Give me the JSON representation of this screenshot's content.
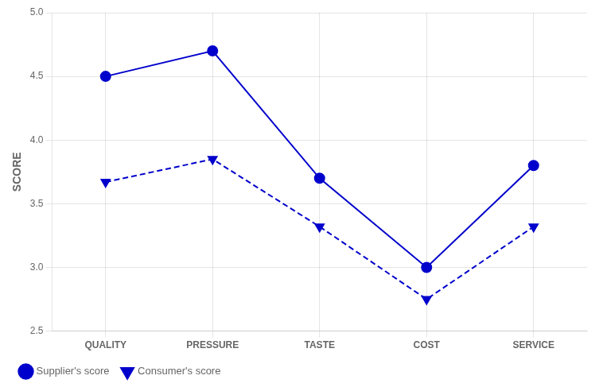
{
  "chart_data": {
    "type": "line",
    "categories": [
      "QUALITY",
      "PRESSURE",
      "TASTE",
      "COST",
      "SERVICE"
    ],
    "series": [
      {
        "name": "Supplier's score",
        "color": "#0000cc",
        "values": [
          4.5,
          4.7,
          3.7,
          3.0,
          3.8
        ],
        "marker": "circle",
        "line_style": "solid"
      },
      {
        "name": "Consumer's score",
        "color": "#0000cc",
        "values": [
          3.67,
          3.85,
          3.32,
          2.75,
          3.32
        ],
        "marker": "triangle-down",
        "line_style": "dashed"
      }
    ],
    "ylabel": "SCORE",
    "ylim": [
      2.5,
      5.0
    ],
    "yticks": [
      2.5,
      {
        "value": 3,
        "label": "3.0"
      },
      3.5,
      {
        "value": 4,
        "label": "4.0"
      },
      4.5,
      {
        "value": 5,
        "label": "5.0"
      }
    ],
    "grid": true,
    "legend": "lower left"
  }
}
